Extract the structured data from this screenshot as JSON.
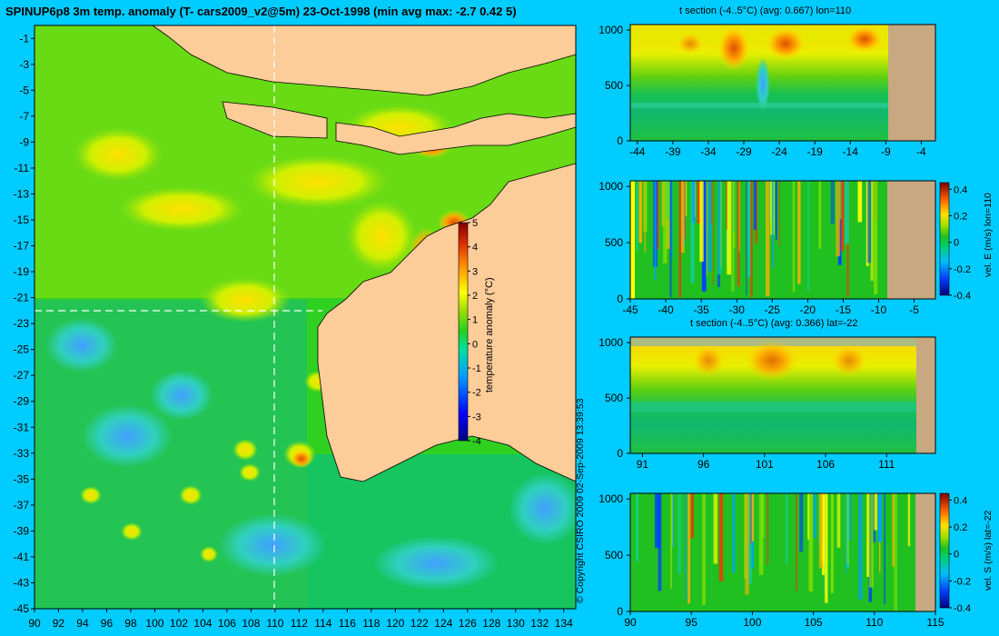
{
  "main_title": "SPINUP6p8 3m temp. anomaly (T- cars2009_v2@5m) 23-Oct-1998 (min avg max: -2.7 0.42 5)",
  "copyright": "© Copyright CSIRO 2009   02-Sep-2009 13:39:53",
  "colors": {
    "background": "#00ccff",
    "land": "#fccc99",
    "section_land": "#c8a880"
  },
  "chart_data": [
    {
      "type": "heatmap",
      "id": "map",
      "xlim": [
        90,
        135
      ],
      "ylim": [
        -45,
        0
      ],
      "x_ticks": [
        "90",
        "92",
        "94",
        "96",
        "98",
        "100",
        "102",
        "104",
        "106",
        "108",
        "110",
        "112",
        "114",
        "116",
        "118",
        "120",
        "122",
        "124",
        "126",
        "128",
        "130",
        "132",
        "134"
      ],
      "y_ticks": [
        "-1",
        "-3",
        "-5",
        "-7",
        "-9",
        "-11",
        "-13",
        "-15",
        "-17",
        "-19",
        "-21",
        "-23",
        "-25",
        "-27",
        "-29",
        "-31",
        "-33",
        "-35",
        "-37",
        "-39",
        "-41",
        "-43",
        "-45"
      ],
      "section_lines": {
        "lon": 110,
        "lat": -22
      },
      "colorbar": {
        "label": "temperature anomaly (°C)",
        "range": [
          -4,
          5
        ],
        "ticks": [
          "5",
          "4",
          "3",
          "2",
          "1",
          "0",
          "-1",
          "-2",
          "-3",
          "-4"
        ]
      }
    },
    {
      "type": "heatmap",
      "id": "tsec_lon",
      "title": "t section (-4..5°C) (avg: 0.667) lon=110",
      "xlim": [
        -45,
        -2
      ],
      "ylim": [
        1050,
        0
      ],
      "x_ticks": [
        "-44",
        "-39",
        "-34",
        "-29",
        "-24",
        "-19",
        "-14",
        "-9",
        "-4"
      ],
      "y_ticks": [
        "0",
        "500",
        "1000"
      ]
    },
    {
      "type": "heatmap",
      "id": "vel_lon",
      "xlim": [
        -45,
        -2
      ],
      "ylim": [
        1050,
        0
      ],
      "x_ticks": [
        "-45",
        "-40",
        "-35",
        "-30",
        "-25",
        "-20",
        "-15",
        "-10",
        "-5"
      ],
      "y_ticks": [
        "0",
        "500",
        "1000"
      ],
      "colorbar": {
        "label": "vel. E (m/s) lon=110",
        "range": [
          -0.4,
          0.45
        ],
        "ticks": [
          "0.4",
          "0.2",
          "0",
          "-0.2",
          "-0.4"
        ]
      }
    },
    {
      "type": "heatmap",
      "id": "tsec_lat",
      "title": "t section (-4..5°C) (avg: 0.366) lat=-22",
      "xlim": [
        90,
        115
      ],
      "ylim": [
        1050,
        0
      ],
      "x_ticks": [
        "91",
        "96",
        "101",
        "106",
        "111"
      ],
      "y_ticks": [
        "0",
        "500",
        "1000"
      ]
    },
    {
      "type": "heatmap",
      "id": "vel_lat",
      "xlim": [
        90,
        115
      ],
      "ylim": [
        1050,
        0
      ],
      "x_ticks": [
        "90",
        "95",
        "100",
        "105",
        "110",
        "115"
      ],
      "y_ticks": [
        "0",
        "500",
        "1000"
      ],
      "colorbar": {
        "label": "vel. S (m/s) lat=-22",
        "range": [
          -0.4,
          0.45
        ],
        "ticks": [
          "0.4",
          "0.2",
          "0",
          "-0.2",
          "-0.4"
        ]
      }
    }
  ]
}
